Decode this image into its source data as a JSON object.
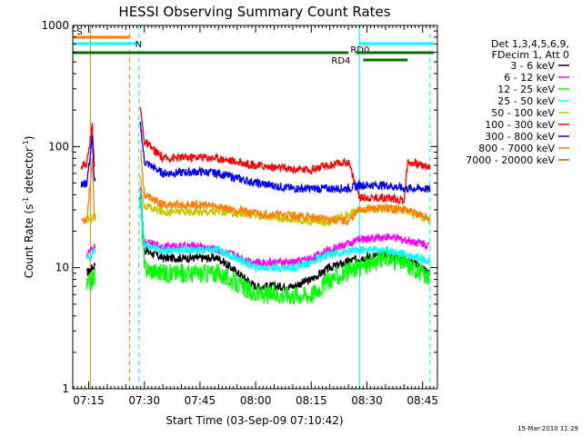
{
  "chart_data": {
    "type": "line",
    "title": "HESSI Observing Summary Count Rates",
    "xlabel": "Start Time (03-Sep-09 07:10:42)",
    "ylabel": "Count Rate (s⁻¹ detector⁻¹)",
    "ylabel_main": "Count Rate (s",
    "ylabel_exp1": "-1",
    "ylabel_mid": " detector",
    "ylabel_exp2": "-1",
    "ylabel_end": ")",
    "yscale": "log",
    "ylim": [
      1,
      1000
    ],
    "xlim": [
      "07:10:42",
      "08:49:00"
    ],
    "x_ticks": [
      "07:15",
      "07:30",
      "07:45",
      "08:00",
      "08:15",
      "08:30",
      "08:45"
    ],
    "y_ticks": [
      "1",
      "10",
      "100",
      "1000"
    ],
    "timestamp": "15-Mar-2010 11:29",
    "legend": {
      "placement": "right",
      "header": [
        "Det 1,3,4,5,6,9,",
        "FDecim 1, Att 0"
      ]
    },
    "top_segments": [
      {
        "label": "S",
        "color": "#ff8000",
        "start": "07:11:00",
        "end": "07:26:00"
      },
      {
        "label": "N",
        "color": "#00ffff",
        "start": "07:10:42",
        "end": "07:28:00"
      },
      {
        "label": "",
        "color": "#007000",
        "start": "07:10:42",
        "end": "08:25:00"
      },
      {
        "label": "RD0",
        "color": "#00ffff",
        "start": "08:28:00",
        "end": "08:48:00"
      },
      {
        "label": "",
        "color": "#007000",
        "start": "08:27:00",
        "end": "08:48:00"
      },
      {
        "label": "RD4",
        "color": "#007000",
        "start": "08:29:00",
        "end": "08:41:00"
      }
    ],
    "vertical_lines": [
      {
        "time": "07:10:42",
        "color": "#00ffff",
        "style": "solid"
      },
      {
        "time": "07:15:30",
        "color": "#ff8000",
        "style": "solid"
      },
      {
        "time": "07:26:00",
        "color": "#ff8000",
        "style": "dashed"
      },
      {
        "time": "07:28:30",
        "color": "#00ffff",
        "style": "dashed"
      },
      {
        "time": "08:28:00",
        "color": "#00ffff",
        "style": "solid"
      },
      {
        "time": "08:47:00",
        "color": "#00ffff",
        "style": "dashed"
      }
    ],
    "series": [
      {
        "name": "3 - 6 keV",
        "color": "#000000",
        "points": [
          [
            "07:14:30",
            9
          ],
          [
            "07:16:00",
            10
          ],
          [
            "07:29:00",
            40
          ],
          [
            "07:30:00",
            14
          ],
          [
            "07:35:00",
            12
          ],
          [
            "07:45:00",
            12
          ],
          [
            "07:50:00",
            12
          ],
          [
            "08:00:00",
            7
          ],
          [
            "08:10:00",
            7
          ],
          [
            "08:15:00",
            8
          ],
          [
            "08:20:00",
            10
          ],
          [
            "08:28:00",
            12
          ],
          [
            "08:35:00",
            13
          ],
          [
            "08:40:00",
            12
          ],
          [
            "08:45:00",
            10
          ],
          [
            "08:47:00",
            9
          ]
        ]
      },
      {
        "name": "6 - 12 keV",
        "color": "#ff00ff",
        "points": [
          [
            "07:14:30",
            13
          ],
          [
            "07:16:00",
            14
          ],
          [
            "07:29:00",
            45
          ],
          [
            "07:30:00",
            16
          ],
          [
            "07:35:00",
            15
          ],
          [
            "07:45:00",
            15
          ],
          [
            "07:50:00",
            14
          ],
          [
            "08:00:00",
            11
          ],
          [
            "08:10:00",
            11
          ],
          [
            "08:15:00",
            12
          ],
          [
            "08:20:00",
            14
          ],
          [
            "08:28:00",
            17
          ],
          [
            "08:35:00",
            18
          ],
          [
            "08:40:00",
            17
          ],
          [
            "08:45:00",
            16
          ],
          [
            "08:47:00",
            15
          ]
        ]
      },
      {
        "name": "12 - 25 keV",
        "color": "#00ff00",
        "points": [
          [
            "07:14:30",
            7
          ],
          [
            "07:16:00",
            8
          ],
          [
            "07:29:00",
            35
          ],
          [
            "07:30:00",
            10
          ],
          [
            "07:35:00",
            9
          ],
          [
            "07:45:00",
            9
          ],
          [
            "07:50:00",
            9
          ],
          [
            "08:00:00",
            6
          ],
          [
            "08:10:00",
            6
          ],
          [
            "08:15:00",
            6
          ],
          [
            "08:20:00",
            8
          ],
          [
            "08:28:00",
            10
          ],
          [
            "08:35:00",
            12
          ],
          [
            "08:40:00",
            11
          ],
          [
            "08:45:00",
            9
          ],
          [
            "08:47:00",
            8
          ]
        ]
      },
      {
        "name": "25 - 50 keV",
        "color": "#00ffff",
        "points": [
          [
            "07:14:30",
            12
          ],
          [
            "07:16:00",
            13
          ],
          [
            "07:29:00",
            42
          ],
          [
            "07:30:00",
            15
          ],
          [
            "07:35:00",
            14
          ],
          [
            "07:45:00",
            14
          ],
          [
            "07:50:00",
            14
          ],
          [
            "08:00:00",
            10
          ],
          [
            "08:10:00",
            10
          ],
          [
            "08:15:00",
            11
          ],
          [
            "08:20:00",
            13
          ],
          [
            "08:28:00",
            14
          ],
          [
            "08:35:00",
            14
          ],
          [
            "08:40:00",
            13
          ],
          [
            "08:45:00",
            12
          ],
          [
            "08:47:00",
            11
          ]
        ]
      },
      {
        "name": "50 - 100 keV",
        "color": "#c8c800",
        "points": [
          [
            "07:14:30",
            25
          ],
          [
            "07:16:00",
            26
          ],
          [
            "07:29:00",
            55
          ],
          [
            "07:30:00",
            32
          ],
          [
            "07:35:00",
            29
          ],
          [
            "07:45:00",
            29
          ],
          [
            "07:50:00",
            29
          ],
          [
            "08:00:00",
            27
          ],
          [
            "08:10:00",
            25
          ],
          [
            "08:15:00",
            24
          ],
          [
            "08:20:00",
            24
          ],
          [
            "08:28:00",
            30
          ],
          [
            "08:35:00",
            31
          ],
          [
            "08:40:00",
            30
          ],
          [
            "08:45:00",
            26
          ],
          [
            "08:47:00",
            25
          ]
        ]
      },
      {
        "name": "100 - 300 keV",
        "color": "#ff0000",
        "points": [
          [
            "07:13:00",
            70
          ],
          [
            "07:14:30",
            72
          ],
          [
            "07:16:00",
            150
          ],
          [
            "07:16:30",
            72
          ],
          [
            "07:29:00",
            200
          ],
          [
            "07:30:00",
            110
          ],
          [
            "07:35:00",
            80
          ],
          [
            "07:45:00",
            82
          ],
          [
            "07:50:00",
            80
          ],
          [
            "08:00:00",
            70
          ],
          [
            "08:10:00",
            65
          ],
          [
            "08:15:00",
            65
          ],
          [
            "08:20:00",
            70
          ],
          [
            "08:25:00",
            75
          ],
          [
            "08:28:00",
            38
          ],
          [
            "08:35:00",
            38
          ],
          [
            "08:40:00",
            36
          ],
          [
            "08:41:00",
            75
          ],
          [
            "08:45:00",
            70
          ],
          [
            "08:47:00",
            68
          ]
        ]
      },
      {
        "name": "300 - 800 keV",
        "color": "#0000ff",
        "points": [
          [
            "07:13:00",
            48
          ],
          [
            "07:14:30",
            50
          ],
          [
            "07:16:00",
            120
          ],
          [
            "07:16:30",
            50
          ],
          [
            "07:29:00",
            150
          ],
          [
            "07:30:00",
            75
          ],
          [
            "07:35:00",
            60
          ],
          [
            "07:45:00",
            62
          ],
          [
            "07:50:00",
            60
          ],
          [
            "08:00:00",
            50
          ],
          [
            "08:10:00",
            45
          ],
          [
            "08:15:00",
            45
          ],
          [
            "08:20:00",
            45
          ],
          [
            "08:25:00",
            45
          ],
          [
            "08:28:00",
            48
          ],
          [
            "08:35:00",
            48
          ],
          [
            "08:40:00",
            45
          ],
          [
            "08:45:00",
            45
          ],
          [
            "08:47:00",
            44
          ]
        ]
      },
      {
        "name": "800 - 7000 keV",
        "color": "#ff8000",
        "points": [
          [
            "07:13:00",
            25
          ],
          [
            "07:14:30",
            25
          ],
          [
            "07:16:00",
            80
          ],
          [
            "07:16:30",
            26
          ],
          [
            "07:29:00",
            95
          ],
          [
            "07:30:00",
            40
          ],
          [
            "07:35:00",
            33
          ],
          [
            "07:45:00",
            33
          ],
          [
            "07:50:00",
            32
          ],
          [
            "08:00:00",
            28
          ],
          [
            "08:10:00",
            27
          ],
          [
            "08:15:00",
            26
          ],
          [
            "08:20:00",
            25
          ],
          [
            "08:25:00",
            24
          ],
          [
            "08:28:00",
            30
          ],
          [
            "08:35:00",
            31
          ],
          [
            "08:40:00",
            30
          ],
          [
            "08:45:00",
            27
          ],
          [
            "08:47:00",
            25
          ]
        ]
      },
      {
        "name": "7000 - 20000 keV",
        "color": "#b06000",
        "points": []
      }
    ]
  }
}
